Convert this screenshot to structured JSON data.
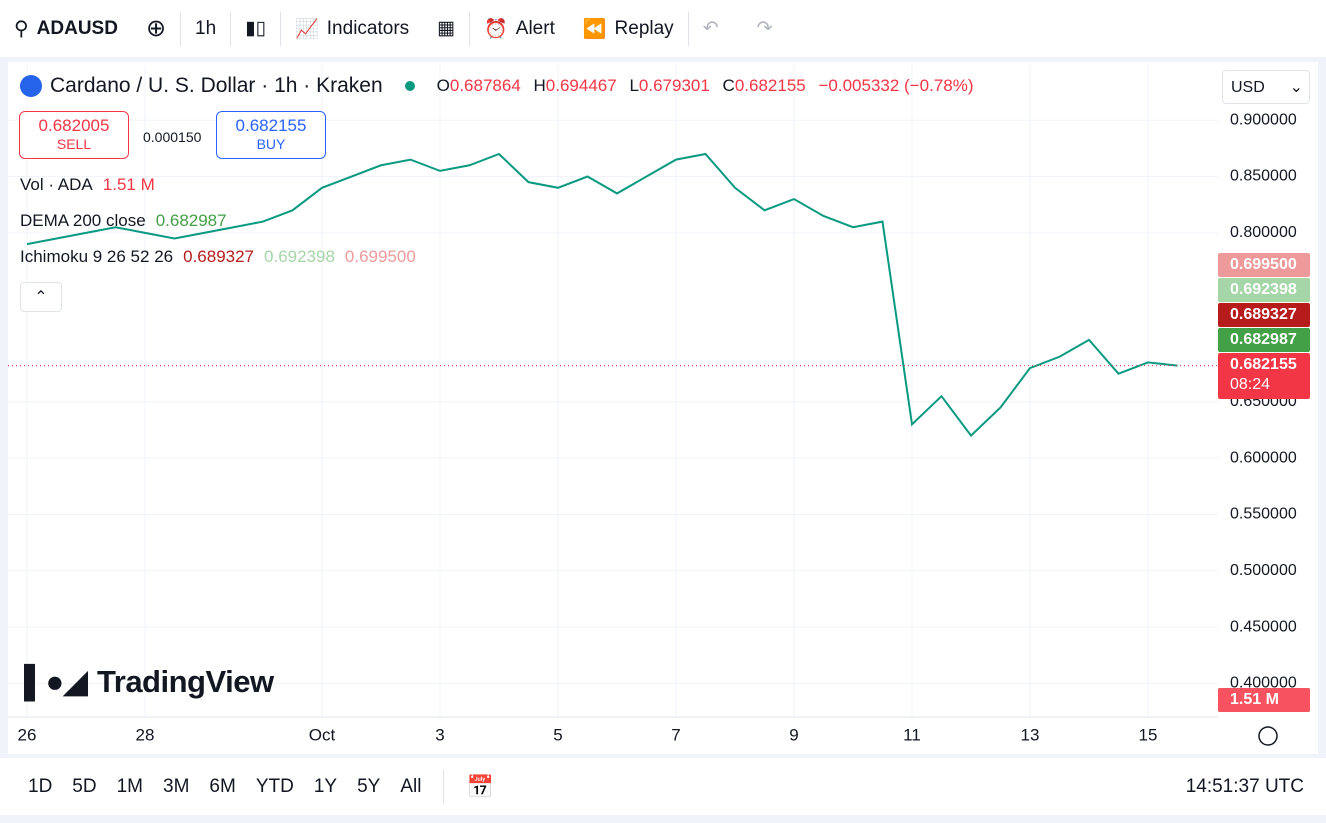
{
  "toolbar": {
    "symbol": "ADAUSD",
    "interval": "1h",
    "indicators": "Indicators",
    "alert": "Alert",
    "replay": "Replay"
  },
  "legend": {
    "title": "Cardano / U. S. Dollar · 1h · Kraken",
    "o_label": "O",
    "o": "0.687864",
    "h_label": "H",
    "h": "0.694467",
    "l_label": "L",
    "l": "0.679301",
    "c_label": "C",
    "c": "0.682155",
    "change": "−0.005332 (−0.78%)"
  },
  "trade": {
    "sell_price": "0.682005",
    "sell": "SELL",
    "spread": "0.000150",
    "buy_price": "0.682155",
    "buy": "BUY"
  },
  "indicators": [
    {
      "name": "Vol · ADA",
      "values": [
        "1.51 M"
      ],
      "colors": [
        "#f23645"
      ]
    },
    {
      "name": "DEMA 200 close",
      "values": [
        "0.682987"
      ],
      "colors": [
        "#43a047"
      ]
    },
    {
      "name": "Ichimoku 9 26 52 26",
      "values": [
        "0.689327",
        "0.692398",
        "0.699500"
      ],
      "colors": [
        "#b71c1c",
        "#a5d6a7",
        "#ef9a9a"
      ]
    }
  ],
  "currency": "USD",
  "price_tags": [
    {
      "label": "0.699500",
      "color": "#ef9a9a"
    },
    {
      "label": "0.692398",
      "color": "#a5d6a7"
    },
    {
      "label": "0.689327",
      "color": "#b71c1c"
    },
    {
      "label": "0.682987",
      "color": "#43a047"
    },
    {
      "label": "0.682155",
      "time": "08:24",
      "color": "#f23645"
    }
  ],
  "volume_tag": "1.51 M",
  "brand": "TradingView",
  "chart_data": {
    "type": "line",
    "categories": [
      "26",
      null,
      null,
      null,
      "28",
      null,
      null,
      null,
      null,
      null,
      "Oct",
      null,
      null,
      null,
      "3",
      null,
      null,
      null,
      "5",
      null,
      null,
      null,
      "7",
      null,
      null,
      null,
      "9",
      null,
      null,
      null,
      "11",
      null,
      null,
      null,
      "13",
      null,
      null,
      null,
      "15",
      null
    ],
    "series": [
      {
        "name": "ADAUSD",
        "color": "#089981",
        "values": [
          0.79,
          0.795,
          0.8,
          0.805,
          0.8,
          0.795,
          0.8,
          0.805,
          0.81,
          0.82,
          0.84,
          0.85,
          0.86,
          0.865,
          0.855,
          0.86,
          0.87,
          0.845,
          0.84,
          0.85,
          0.835,
          0.85,
          0.865,
          0.87,
          0.84,
          0.82,
          0.83,
          0.815,
          0.805,
          0.81,
          0.63,
          0.655,
          0.62,
          0.645,
          0.68,
          0.69,
          0.705,
          0.675,
          0.685,
          0.682155
        ]
      }
    ],
    "ylim": [
      0.372,
      0.949
    ],
    "yticks": [
      {
        "value": 0.9,
        "label": "0.900000"
      },
      {
        "value": 0.85,
        "label": "0.850000"
      },
      {
        "value": 0.8,
        "label": "0.800000"
      },
      {
        "value": 0.65,
        "label": "0.650000"
      },
      {
        "value": 0.6,
        "label": "0.600000"
      },
      {
        "value": 0.55,
        "label": "0.550000"
      },
      {
        "value": 0.5,
        "label": "0.500000"
      },
      {
        "value": 0.45,
        "label": "0.450000"
      },
      {
        "value": 0.4,
        "label": "0.400000"
      }
    ],
    "grid": true
  },
  "bottom": {
    "ranges": [
      "1D",
      "5D",
      "1M",
      "3M",
      "6M",
      "YTD",
      "1Y",
      "5Y",
      "All"
    ],
    "clock": "14:51:37 UTC"
  }
}
